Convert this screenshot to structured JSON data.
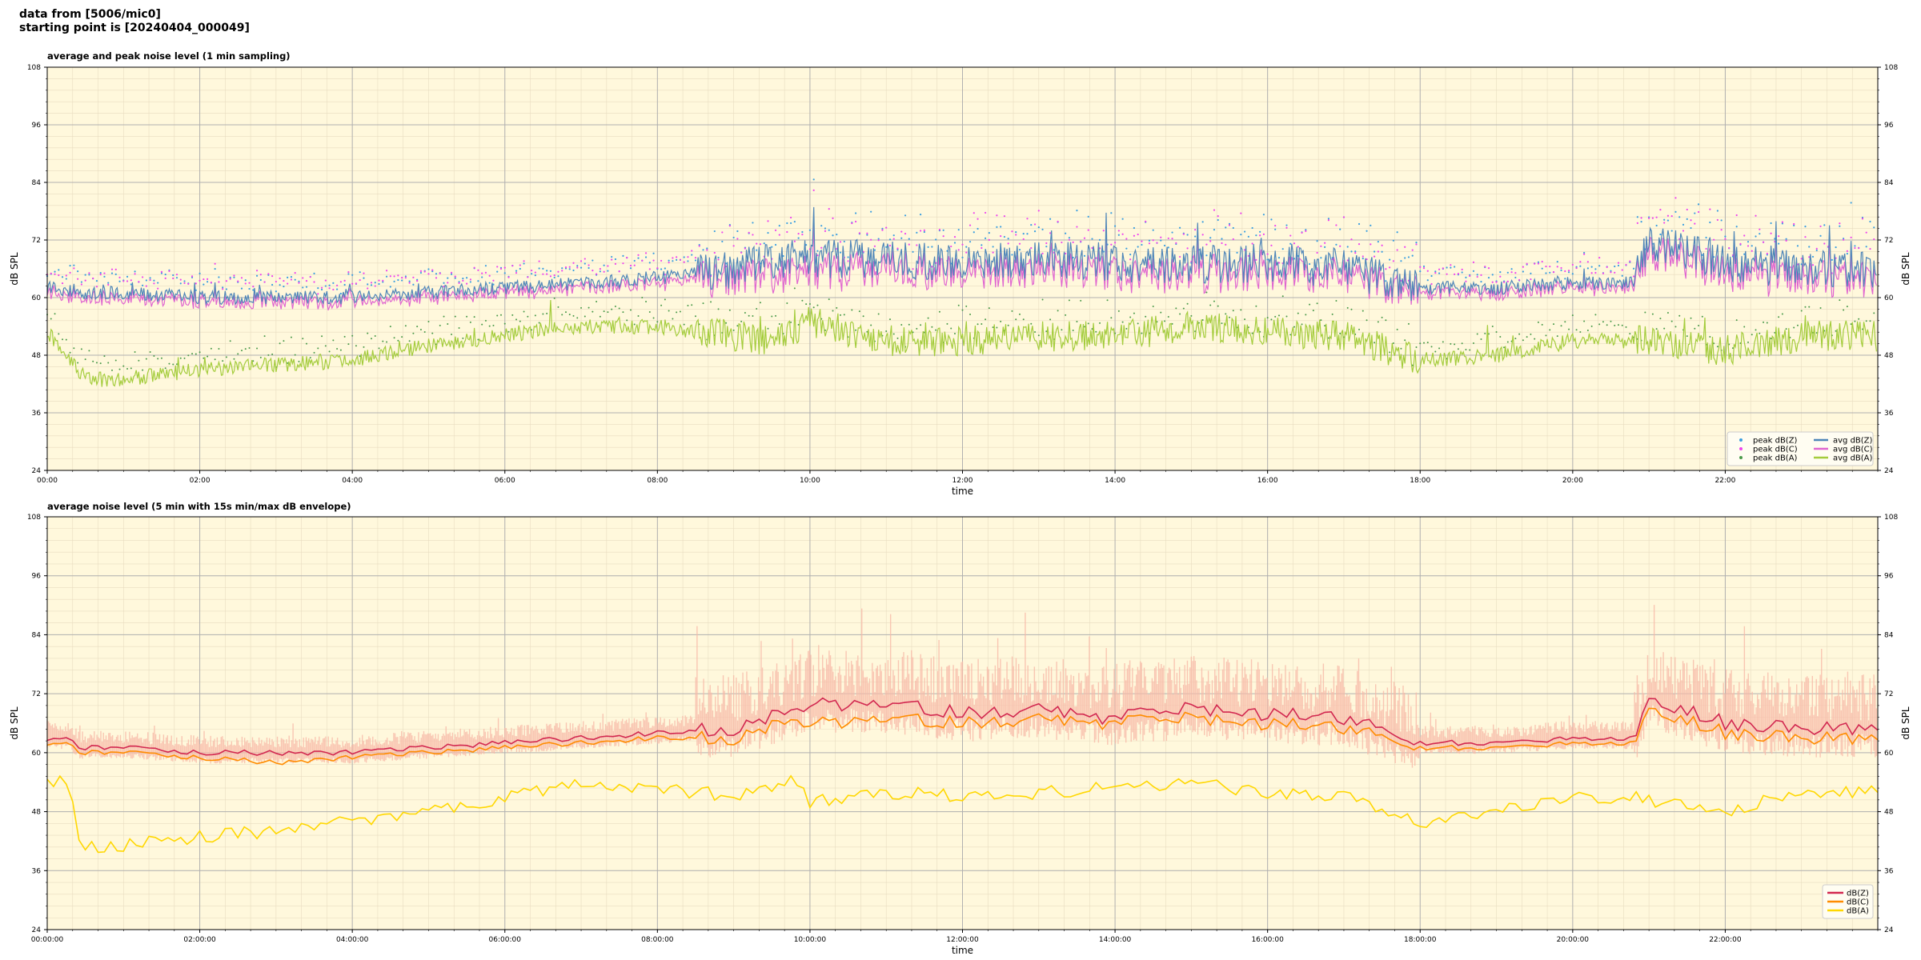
{
  "header": {
    "line1": "data from [5006/mic0]",
    "line2": "starting point is [20240404_000049]"
  },
  "chart_data": [
    {
      "type": "line",
      "title": "average and peak noise level (1 min sampling)",
      "xlabel": "time",
      "ylabel": "dB SPL",
      "ylim": [
        24,
        108
      ],
      "yticks": [
        "24",
        "36",
        "48",
        "60",
        "72",
        "84",
        "96",
        "108"
      ],
      "xlim_hours": [
        0,
        24
      ],
      "xticks": [
        "00:00",
        "02:00",
        "04:00",
        "06:00",
        "08:00",
        "10:00",
        "12:00",
        "14:00",
        "16:00",
        "18:00",
        "20:00",
        "22:00"
      ],
      "grid": true,
      "legend_position": "bottom-right",
      "legend": [
        "peak dB(Z)",
        "peak dB(C)",
        "peak dB(A)",
        "avg dB(Z)",
        "avg dB(C)",
        "avg dB(A)"
      ],
      "colors": {
        "avgZ": "#4e85b8",
        "avgC": "#e066d0",
        "avgA": "#a4cc3c",
        "peakZ": "#3a9ee0",
        "peakC": "#ee44ee",
        "peakA": "#4a9a4a"
      },
      "series_profile": {
        "hours": [
          0,
          0.5,
          1,
          2,
          3,
          4,
          5,
          6,
          7,
          8,
          9,
          9.5,
          10,
          11,
          12,
          13,
          14,
          15,
          16,
          17,
          18,
          19,
          20,
          20.8,
          21,
          22,
          23,
          24
        ],
        "avgZ": [
          62,
          61,
          61,
          60,
          60,
          60,
          61,
          62,
          63,
          64,
          66,
          68,
          68,
          68,
          67,
          68,
          67,
          67,
          67,
          66,
          62,
          62,
          63,
          63,
          72,
          67,
          66,
          66
        ],
        "avgC": [
          61,
          60,
          60,
          59,
          59,
          59,
          60,
          61,
          62,
          63,
          64,
          65,
          65,
          66,
          65,
          66,
          65,
          65,
          65,
          64,
          61,
          61,
          62,
          62,
          70,
          65,
          64,
          64
        ],
        "avgA": [
          53,
          43,
          43,
          45,
          46,
          47,
          50,
          52,
          54,
          54,
          52,
          51,
          55,
          51,
          51,
          52,
          52,
          54,
          53,
          52,
          47,
          48,
          51,
          51,
          51,
          49,
          52,
          52
        ]
      }
    },
    {
      "type": "area",
      "title": "average noise level (5 min with 15s min/max dB envelope)",
      "xlabel": "time",
      "ylabel": "dB SPL",
      "ylim": [
        24,
        108
      ],
      "yticks": [
        "24",
        "36",
        "48",
        "60",
        "72",
        "84",
        "96",
        "108"
      ],
      "xlim_hours": [
        0,
        24
      ],
      "xticks": [
        "00:00:00",
        "02:00:00",
        "04:00:00",
        "06:00:00",
        "08:00:00",
        "10:00:00",
        "12:00:00",
        "14:00:00",
        "16:00:00",
        "18:00:00",
        "20:00:00",
        "22:00:00"
      ],
      "grid": true,
      "legend_position": "bottom-right",
      "legend": [
        "dB(Z)",
        "dB(C)",
        "dB(A)"
      ],
      "colors": {
        "Z": "#d22850",
        "C": "#ff8c00",
        "A": "#ffd700",
        "envelope": "#f7b9a8"
      },
      "series_profile": {
        "hours": [
          0,
          0.3,
          0.4,
          1,
          2,
          3,
          4,
          5,
          6,
          7,
          8,
          9,
          9.8,
          10,
          11,
          12,
          13,
          14,
          15,
          16,
          17,
          18,
          19,
          20,
          20.8,
          21,
          22,
          23,
          24
        ],
        "Z": [
          63,
          63,
          61,
          61,
          60,
          60,
          60,
          61,
          62,
          63,
          64,
          65,
          69,
          70,
          70,
          68,
          69,
          67,
          69,
          68,
          67,
          62,
          62,
          63,
          63,
          71,
          66,
          65,
          65
        ],
        "C": [
          62,
          62,
          60,
          60,
          59,
          58,
          59,
          60,
          61,
          62,
          63,
          63,
          67,
          66,
          67,
          66,
          67,
          66,
          67,
          66,
          65,
          61,
          61,
          62,
          62,
          69,
          64,
          63,
          63
        ],
        "A": [
          54,
          54,
          41,
          41,
          43,
          44,
          46,
          48,
          51,
          54,
          53,
          51,
          55,
          50,
          52,
          51,
          52,
          53,
          54,
          52,
          51,
          46,
          48,
          51,
          51,
          50,
          48,
          52,
          52
        ]
      }
    }
  ]
}
